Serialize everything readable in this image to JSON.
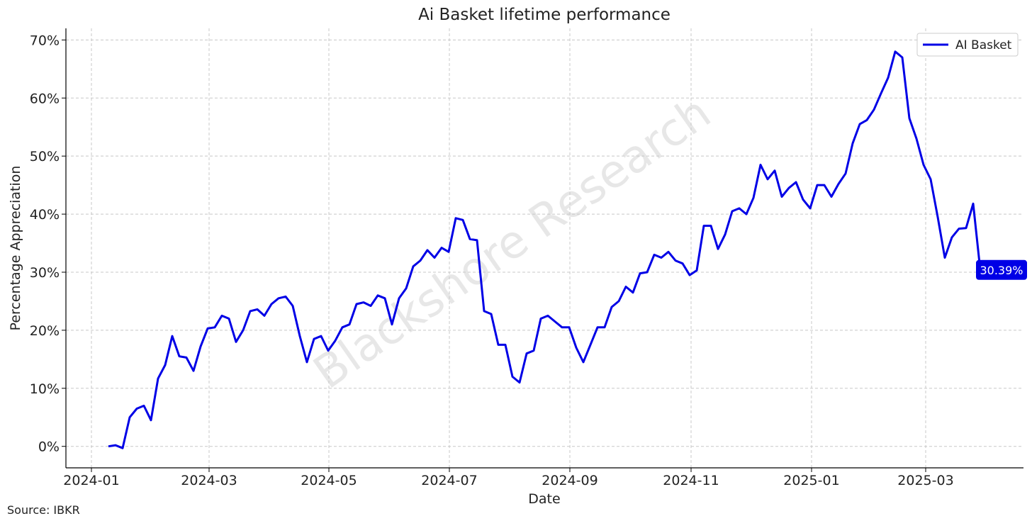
{
  "chart_data": {
    "type": "line",
    "title": "Ai Basket lifetime performance",
    "xlabel": "Date",
    "ylabel": "Percentage Appreciation",
    "source": "Source: IBKR",
    "watermark": "Blackshore Research",
    "end_label": "30.39%",
    "legend": "upper right",
    "grid": true,
    "xlim": [
      -6,
      129.1
    ],
    "xticks": [
      {
        "value": -2.4,
        "label": "2024-01"
      },
      {
        "value": 14.2,
        "label": "2024-03"
      },
      {
        "value": 31.1,
        "label": "2024-05"
      },
      {
        "value": 48.1,
        "label": "2024-07"
      },
      {
        "value": 65.1,
        "label": "2024-09"
      },
      {
        "value": 82.2,
        "label": "2024-11"
      },
      {
        "value": 99.2,
        "label": "2025-01"
      },
      {
        "value": 115.3,
        "label": "2025-03"
      }
    ],
    "ylim": [
      -3.7,
      72
    ],
    "yticks": [
      {
        "value": 0,
        "label": "0%"
      },
      {
        "value": 10,
        "label": "10%"
      },
      {
        "value": 20,
        "label": "20%"
      },
      {
        "value": 30,
        "label": "30%"
      },
      {
        "value": 40,
        "label": "40%"
      },
      {
        "value": 50,
        "label": "50%"
      },
      {
        "value": 60,
        "label": "60%"
      },
      {
        "value": 70,
        "label": "70%"
      }
    ],
    "series": [
      {
        "name": "AI Basket",
        "color": "#0000e6",
        "values": [
          0,
          0.2,
          -0.3,
          5,
          6.5,
          7,
          4.5,
          11.7,
          14,
          19,
          15.5,
          15.3,
          13,
          17.2,
          20.3,
          20.5,
          22.5,
          22,
          18,
          20,
          23.3,
          23.6,
          22.5,
          24.5,
          25.5,
          25.8,
          24.2,
          19,
          14.5,
          18.5,
          19,
          16.5,
          18.2,
          20.5,
          21,
          24.5,
          24.8,
          24.2,
          26,
          25.5,
          21,
          25.5,
          27.2,
          31,
          32,
          33.8,
          32.5,
          34.2,
          33.5,
          39.3,
          39,
          35.7,
          35.5,
          23.3,
          22.8,
          17.5,
          17.5,
          12,
          11,
          16,
          16.5,
          22,
          22.5,
          21.5,
          20.5,
          20.5,
          17,
          14.5,
          17.5,
          20.5,
          20.5,
          24,
          25,
          27.5,
          26.5,
          29.8,
          30,
          33,
          32.5,
          33.5,
          32,
          31.5,
          29.5,
          30.3,
          38,
          38,
          34,
          36.5,
          40.5,
          41,
          40,
          42.8,
          48.5,
          46,
          47.5,
          43,
          44.5,
          45.5,
          42.5,
          41,
          45,
          45,
          43,
          45.2,
          47,
          52.2,
          55.5,
          56.2,
          58,
          60.8,
          63.5,
          68,
          67,
          56.5,
          53,
          48.5,
          46,
          39.5,
          32.5,
          36,
          37.5,
          37.6,
          41.8,
          30.39
        ]
      }
    ]
  }
}
